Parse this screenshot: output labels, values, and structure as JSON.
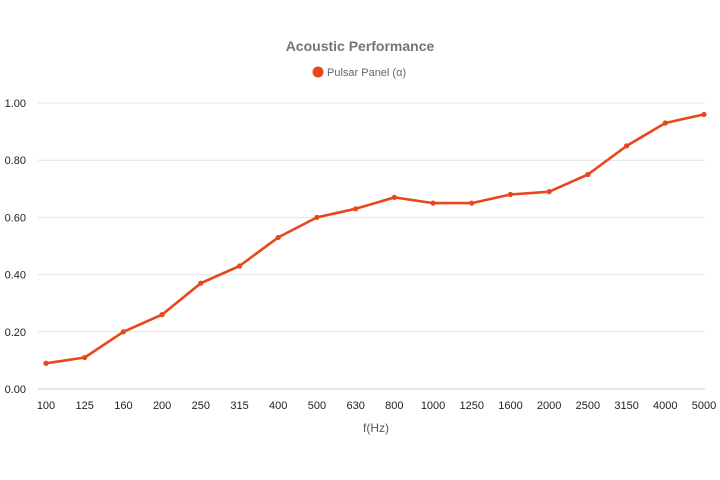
{
  "chart_data": {
    "type": "line",
    "title": "Acoustic Performance",
    "xlabel": "f(Hz)",
    "ylabel": "",
    "categories": [
      "100",
      "125",
      "160",
      "200",
      "250",
      "315",
      "400",
      "500",
      "630",
      "800",
      "1000",
      "1250",
      "1600",
      "2000",
      "2500",
      "3150",
      "4000",
      "5000"
    ],
    "series": [
      {
        "name": "Pulsar Panel (α)",
        "color": "#e8461b",
        "values": [
          0.09,
          0.11,
          0.2,
          0.26,
          0.37,
          0.43,
          0.53,
          0.6,
          0.63,
          0.67,
          0.65,
          0.65,
          0.68,
          0.69,
          0.75,
          0.85,
          0.93,
          0.96
        ]
      }
    ],
    "ylim": [
      0,
      1
    ],
    "yticks": [
      "0.00",
      "0.20",
      "0.40",
      "0.60",
      "0.80",
      "1.00"
    ],
    "grid": true,
    "legend_position": "top"
  }
}
